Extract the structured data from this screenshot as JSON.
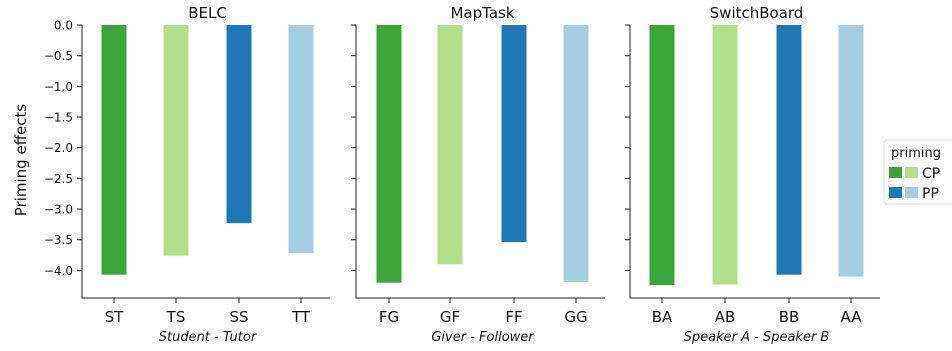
{
  "chart_data": {
    "type": "bar",
    "ylabel": "Priming effects",
    "ylim": [
      -4.45,
      0.0
    ],
    "yticks": [
      "0.0",
      "−0.5",
      "−1.0",
      "−1.5",
      "−2.0",
      "−2.5",
      "−3.0",
      "−3.5",
      "−4.0"
    ],
    "ytick_values": [
      0.0,
      -0.5,
      -1.0,
      -1.5,
      -2.0,
      -2.5,
      -3.0,
      -3.5,
      -4.0
    ],
    "grid": false,
    "legend": {
      "title": "priming",
      "placement": "right",
      "entries": [
        {
          "label": "CP",
          "colors": [
            "#3ca53a",
            "#b2df8a"
          ]
        },
        {
          "label": "PP",
          "colors": [
            "#1f78b4",
            "#a6cee3"
          ]
        }
      ]
    },
    "colors": {
      "CP_dark": "#3ca53a",
      "CP_light": "#b2df8a",
      "PP_dark": "#1f78b4",
      "PP_light": "#a6cee3"
    },
    "panels": [
      {
        "title": "BELC",
        "xlabel": "Student - Tutor",
        "categories": [
          "ST",
          "TS",
          "SS",
          "TT"
        ],
        "values": [
          -4.07,
          -3.76,
          -3.23,
          -3.72
        ],
        "colors": [
          "#3ca53a",
          "#b2df8a",
          "#1f78b4",
          "#a6cee3"
        ]
      },
      {
        "title": "MapTask",
        "xlabel": "Giver - Follower",
        "categories": [
          "FG",
          "GF",
          "FF",
          "GG"
        ],
        "values": [
          -4.2,
          -3.9,
          -3.54,
          -4.19
        ],
        "colors": [
          "#3ca53a",
          "#b2df8a",
          "#1f78b4",
          "#a6cee3"
        ]
      },
      {
        "title": "SwitchBoard",
        "xlabel": "Speaker A - Speaker B",
        "categories": [
          "BA",
          "AB",
          "BB",
          "AA"
        ],
        "values": [
          -4.24,
          -4.23,
          -4.07,
          -4.1
        ],
        "colors": [
          "#3ca53a",
          "#b2df8a",
          "#1f78b4",
          "#a6cee3"
        ]
      }
    ]
  }
}
